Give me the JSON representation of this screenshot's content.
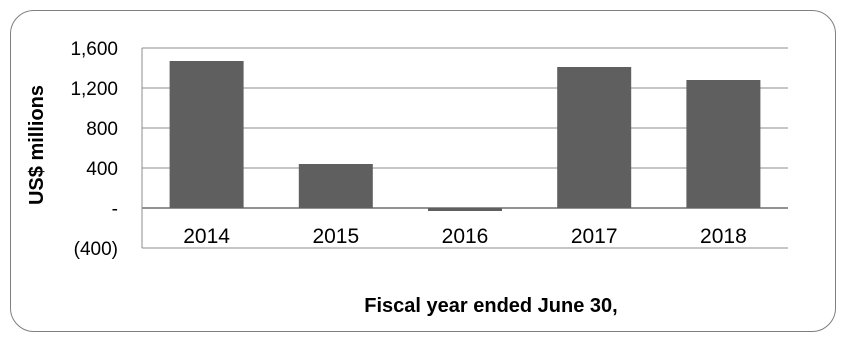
{
  "chart_data": {
    "type": "bar",
    "categories": [
      "2014",
      "2015",
      "2016",
      "2017",
      "2018"
    ],
    "values": [
      1470,
      440,
      -30,
      1410,
      1280
    ],
    "xlabel": "Fiscal year ended June 30,",
    "ylabel": "US$ millions",
    "ylim": [
      -400,
      1600
    ],
    "yticks": [
      1600,
      1200,
      800,
      400,
      0,
      -400
    ],
    "ytick_labels": [
      "1,600",
      "1,200",
      "800",
      "400",
      "-",
      "(400)"
    ],
    "grid": true,
    "legend": "none",
    "bar_color": "#5f5f5f",
    "grid_color": "#8c8c8c",
    "frame_color": "#7f7f7f"
  }
}
